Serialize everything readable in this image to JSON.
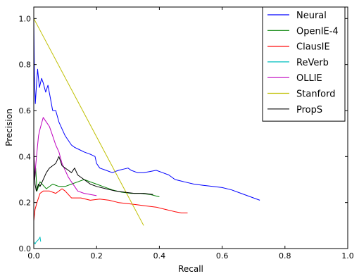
{
  "chart_data": {
    "type": "line",
    "title": "",
    "xlabel": "Recall",
    "ylabel": "Precision",
    "xlim": [
      0.0,
      1.0
    ],
    "ylim": [
      0.0,
      1.05
    ],
    "xticks": [
      "0.0",
      "0.2",
      "0.4",
      "0.6",
      "0.8",
      "1.0"
    ],
    "yticks": [
      "0.0",
      "0.2",
      "0.4",
      "0.6",
      "0.8",
      "1.0"
    ],
    "grid": false,
    "legend_position": "top-right",
    "series": [
      {
        "name": "Neural",
        "color": "#0000ff",
        "points": [
          [
            0.0,
            1.0
          ],
          [
            0.002,
            0.75
          ],
          [
            0.005,
            0.63
          ],
          [
            0.008,
            0.7
          ],
          [
            0.012,
            0.78
          ],
          [
            0.018,
            0.7
          ],
          [
            0.025,
            0.74
          ],
          [
            0.03,
            0.72
          ],
          [
            0.038,
            0.68
          ],
          [
            0.045,
            0.71
          ],
          [
            0.052,
            0.66
          ],
          [
            0.06,
            0.6
          ],
          [
            0.07,
            0.6
          ],
          [
            0.08,
            0.55
          ],
          [
            0.09,
            0.52
          ],
          [
            0.1,
            0.49
          ],
          [
            0.11,
            0.47
          ],
          [
            0.12,
            0.45
          ],
          [
            0.13,
            0.44
          ],
          [
            0.145,
            0.43
          ],
          [
            0.16,
            0.42
          ],
          [
            0.18,
            0.41
          ],
          [
            0.195,
            0.4
          ],
          [
            0.2,
            0.37
          ],
          [
            0.21,
            0.35
          ],
          [
            0.23,
            0.34
          ],
          [
            0.25,
            0.33
          ],
          [
            0.27,
            0.34
          ],
          [
            0.285,
            0.345
          ],
          [
            0.3,
            0.35
          ],
          [
            0.31,
            0.34
          ],
          [
            0.33,
            0.33
          ],
          [
            0.35,
            0.33
          ],
          [
            0.37,
            0.335
          ],
          [
            0.39,
            0.34
          ],
          [
            0.41,
            0.33
          ],
          [
            0.43,
            0.32
          ],
          [
            0.45,
            0.3
          ],
          [
            0.48,
            0.29
          ],
          [
            0.51,
            0.28
          ],
          [
            0.54,
            0.275
          ],
          [
            0.57,
            0.27
          ],
          [
            0.6,
            0.265
          ],
          [
            0.63,
            0.255
          ],
          [
            0.66,
            0.24
          ],
          [
            0.68,
            0.23
          ],
          [
            0.7,
            0.22
          ],
          [
            0.72,
            0.21
          ]
        ]
      },
      {
        "name": "OpenIE-4",
        "color": "#008000",
        "points": [
          [
            0.0,
            0.4
          ],
          [
            0.003,
            0.3
          ],
          [
            0.006,
            0.35
          ],
          [
            0.01,
            0.25
          ],
          [
            0.02,
            0.29
          ],
          [
            0.04,
            0.26
          ],
          [
            0.06,
            0.28
          ],
          [
            0.08,
            0.27
          ],
          [
            0.1,
            0.27
          ],
          [
            0.12,
            0.28
          ],
          [
            0.14,
            0.29
          ],
          [
            0.16,
            0.3
          ],
          [
            0.18,
            0.29
          ],
          [
            0.2,
            0.28
          ],
          [
            0.22,
            0.27
          ],
          [
            0.25,
            0.255
          ],
          [
            0.28,
            0.245
          ],
          [
            0.31,
            0.24
          ],
          [
            0.34,
            0.24
          ],
          [
            0.37,
            0.235
          ],
          [
            0.4,
            0.225
          ]
        ]
      },
      {
        "name": "ClausIE",
        "color": "#ff0000",
        "points": [
          [
            0.0,
            0.12
          ],
          [
            0.004,
            0.17
          ],
          [
            0.01,
            0.2
          ],
          [
            0.02,
            0.24
          ],
          [
            0.03,
            0.25
          ],
          [
            0.05,
            0.25
          ],
          [
            0.07,
            0.24
          ],
          [
            0.09,
            0.26
          ],
          [
            0.1,
            0.25
          ],
          [
            0.12,
            0.22
          ],
          [
            0.15,
            0.22
          ],
          [
            0.18,
            0.21
          ],
          [
            0.21,
            0.215
          ],
          [
            0.24,
            0.21
          ],
          [
            0.27,
            0.2
          ],
          [
            0.3,
            0.195
          ],
          [
            0.33,
            0.19
          ],
          [
            0.36,
            0.185
          ],
          [
            0.39,
            0.18
          ],
          [
            0.42,
            0.17
          ],
          [
            0.45,
            0.16
          ],
          [
            0.47,
            0.155
          ],
          [
            0.49,
            0.155
          ]
        ]
      },
      {
        "name": "ReVerb",
        "color": "#00bfbf",
        "points": [
          [
            0.0,
            0.03
          ],
          [
            0.004,
            0.02
          ],
          [
            0.008,
            0.03
          ],
          [
            0.012,
            0.035
          ],
          [
            0.016,
            0.04
          ],
          [
            0.02,
            0.05
          ],
          [
            0.022,
            0.03
          ]
        ]
      },
      {
        "name": "OLLIE",
        "color": "#bf00bf",
        "points": [
          [
            0.0,
            0.47
          ],
          [
            0.003,
            0.3
          ],
          [
            0.006,
            0.36
          ],
          [
            0.01,
            0.42
          ],
          [
            0.015,
            0.49
          ],
          [
            0.02,
            0.52
          ],
          [
            0.03,
            0.57
          ],
          [
            0.04,
            0.55
          ],
          [
            0.05,
            0.53
          ],
          [
            0.06,
            0.49
          ],
          [
            0.07,
            0.45
          ],
          [
            0.08,
            0.42
          ],
          [
            0.09,
            0.37
          ],
          [
            0.1,
            0.34
          ],
          [
            0.11,
            0.31
          ],
          [
            0.12,
            0.29
          ],
          [
            0.13,
            0.27
          ],
          [
            0.14,
            0.25
          ],
          [
            0.16,
            0.24
          ],
          [
            0.18,
            0.235
          ],
          [
            0.2,
            0.23
          ]
        ]
      },
      {
        "name": "Stanford",
        "color": "#bfbf00",
        "points": [
          [
            0.0,
            1.0
          ],
          [
            0.35,
            0.1
          ]
        ]
      },
      {
        "name": "PropS",
        "color": "#000000",
        "points": [
          [
            0.0,
            0.4
          ],
          [
            0.004,
            0.28
          ],
          [
            0.008,
            0.25
          ],
          [
            0.015,
            0.28
          ],
          [
            0.02,
            0.27
          ],
          [
            0.03,
            0.3
          ],
          [
            0.04,
            0.33
          ],
          [
            0.05,
            0.35
          ],
          [
            0.06,
            0.36
          ],
          [
            0.07,
            0.37
          ],
          [
            0.08,
            0.4
          ],
          [
            0.09,
            0.36
          ],
          [
            0.1,
            0.35
          ],
          [
            0.11,
            0.34
          ],
          [
            0.12,
            0.33
          ],
          [
            0.13,
            0.35
          ],
          [
            0.14,
            0.32
          ],
          [
            0.16,
            0.3
          ],
          [
            0.18,
            0.28
          ],
          [
            0.2,
            0.27
          ],
          [
            0.23,
            0.26
          ],
          [
            0.26,
            0.25
          ],
          [
            0.29,
            0.245
          ],
          [
            0.32,
            0.24
          ],
          [
            0.35,
            0.24
          ],
          [
            0.38,
            0.235
          ]
        ]
      }
    ]
  }
}
